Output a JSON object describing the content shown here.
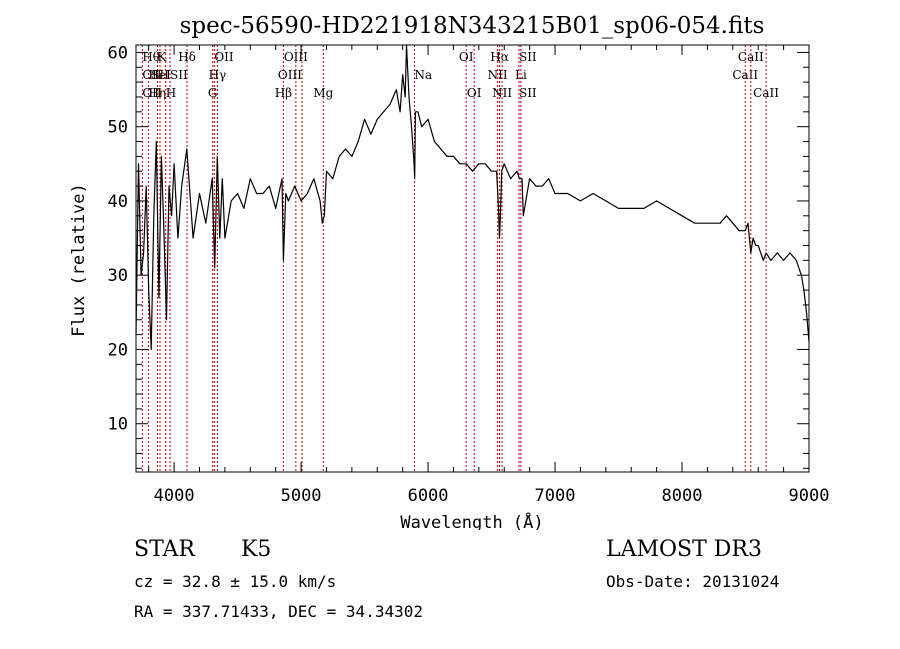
{
  "chart_data": {
    "type": "line",
    "title": "spec-56590-HD221918N343215B01_sp06-054.fits",
    "xlabel": "Wavelength (Å)",
    "ylabel": "Flux (relative)",
    "xlim": [
      3700,
      9000
    ],
    "ylim": [
      3.5,
      61
    ],
    "x_ticks": [
      4000,
      5000,
      6000,
      7000,
      8000,
      9000
    ],
    "y_ticks": [
      10,
      20,
      30,
      40,
      50,
      60
    ],
    "grid": false,
    "series": [
      {
        "name": "flux",
        "x": [
          3700,
          3720,
          3740,
          3760,
          3780,
          3800,
          3820,
          3840,
          3860,
          3880,
          3900,
          3920,
          3940,
          3960,
          3980,
          4000,
          4030,
          4060,
          4100,
          4150,
          4200,
          4250,
          4300,
          4320,
          4340,
          4360,
          4380,
          4400,
          4450,
          4500,
          4550,
          4600,
          4650,
          4700,
          4750,
          4800,
          4850,
          4861,
          4880,
          4900,
          4950,
          5000,
          5050,
          5100,
          5150,
          5167,
          5183,
          5200,
          5250,
          5300,
          5350,
          5400,
          5450,
          5500,
          5550,
          5600,
          5650,
          5700,
          5750,
          5780,
          5800,
          5820,
          5830,
          5850,
          5870,
          5890,
          5895,
          5900,
          5920,
          5950,
          6000,
          6050,
          6100,
          6150,
          6200,
          6250,
          6300,
          6350,
          6400,
          6450,
          6500,
          6540,
          6555,
          6563,
          6570,
          6580,
          6600,
          6650,
          6700,
          6720,
          6740,
          6750,
          6800,
          6850,
          6900,
          6950,
          7000,
          7100,
          7200,
          7300,
          7400,
          7500,
          7600,
          7700,
          7800,
          7900,
          8000,
          8100,
          8200,
          8300,
          8350,
          8400,
          8450,
          8498,
          8520,
          8542,
          8560,
          8580,
          8600,
          8640,
          8662,
          8700,
          8750,
          8800,
          8850,
          8900,
          8920,
          8940,
          8960,
          8980,
          9000
        ],
        "y": [
          22,
          45,
          30,
          33,
          42,
          28,
          20,
          38,
          48,
          27,
          46,
          36,
          24,
          42,
          38,
          45,
          35,
          42,
          47,
          35,
          41,
          37,
          43,
          31,
          46,
          35,
          43,
          35,
          40,
          41,
          39,
          43,
          41,
          41,
          42,
          39,
          43,
          32,
          41,
          40,
          42,
          40,
          41,
          43,
          40,
          37,
          38,
          44,
          43,
          46,
          47,
          46,
          48,
          51,
          49,
          51,
          52,
          53,
          55,
          52,
          57,
          54,
          63,
          54,
          50,
          45,
          43,
          52,
          52,
          50,
          51,
          48,
          47,
          46,
          46,
          45,
          45,
          44,
          45,
          45,
          44,
          44,
          39,
          35,
          38,
          44,
          45,
          43,
          44,
          43,
          43,
          38,
          43,
          42,
          42,
          43,
          41,
          41,
          40,
          41,
          40,
          39,
          39,
          39,
          40,
          39,
          38,
          37,
          37,
          37,
          38,
          37,
          36,
          36,
          37,
          33,
          35,
          34,
          34,
          32,
          33,
          32,
          33,
          32,
          33,
          32,
          31,
          30,
          28,
          25,
          21
        ]
      }
    ],
    "line_markers": [
      {
        "wave": 3750,
        "labels": [
          "Hθ",
          "OII",
          "OII"
        ],
        "rows": [
          0,
          1,
          2
        ],
        "anchor": "start"
      },
      {
        "wave": 3798,
        "labels": [
          "HeI",
          "Hη"
        ],
        "rows": [
          1,
          2
        ],
        "anchor": "start"
      },
      {
        "wave": 3869,
        "labels": [
          "K"
        ],
        "rows": [
          0
        ],
        "anchor": "start"
      },
      {
        "wave": 3889,
        "labels": [
          "SII"
        ],
        "rows": [
          1
        ],
        "anchor": "middle"
      },
      {
        "wave": 3934,
        "labels": [
          "H"
        ],
        "rows": [
          2
        ],
        "anchor": "start"
      },
      {
        "wave": 3968,
        "labels": [
          "SII"
        ],
        "rows": [
          1
        ],
        "anchor": "start"
      },
      {
        "wave": 4102,
        "labels": [
          "Hδ"
        ],
        "rows": [
          0
        ],
        "anchor": "middle"
      },
      {
        "wave": 4304,
        "labels": [
          "G"
        ],
        "rows": [
          2
        ],
        "anchor": "middle"
      },
      {
        "wave": 4317,
        "labels": [
          "OII"
        ],
        "rows": [
          0
        ],
        "anchor": "start"
      },
      {
        "wave": 4341,
        "labels": [
          "Hγ"
        ],
        "rows": [
          1
        ],
        "anchor": "middle"
      },
      {
        "wave": 4861,
        "labels": [
          "Hβ"
        ],
        "rows": [
          2
        ],
        "anchor": "middle"
      },
      {
        "wave": 4959,
        "labels": [
          "OIII"
        ],
        "rows": [
          0
        ],
        "anchor": "middle"
      },
      {
        "wave": 5007,
        "labels": [
          "OIII"
        ],
        "rows": [
          1
        ],
        "anchor": "end"
      },
      {
        "wave": 5175,
        "labels": [
          "Mg"
        ],
        "rows": [
          2
        ],
        "anchor": "middle"
      },
      {
        "wave": 5893,
        "labels": [
          "Na"
        ],
        "rows": [
          1
        ],
        "anchor": "start"
      },
      {
        "wave": 6300,
        "labels": [
          "OI"
        ],
        "rows": [
          0
        ],
        "anchor": "middle"
      },
      {
        "wave": 6363,
        "labels": [
          "OI"
        ],
        "rows": [
          2
        ],
        "anchor": "middle"
      },
      {
        "wave": 6548,
        "labels": [
          "NII"
        ],
        "rows": [
          1
        ],
        "anchor": "middle"
      },
      {
        "wave": 6563,
        "labels": [
          "Hα"
        ],
        "rows": [
          0
        ],
        "anchor": "middle"
      },
      {
        "wave": 6583,
        "labels": [
          "NII"
        ],
        "rows": [
          2
        ],
        "anchor": "middle"
      },
      {
        "wave": 6716,
        "labels": [
          "SII",
          "SII"
        ],
        "rows": [
          0,
          2
        ],
        "anchor": "start"
      },
      {
        "wave": 6731,
        "labels": [
          "Li"
        ],
        "rows": [
          1
        ],
        "anchor": "middle"
      },
      {
        "wave": 8498,
        "labels": [
          "CaII"
        ],
        "rows": [
          1
        ],
        "anchor": "middle"
      },
      {
        "wave": 8542,
        "labels": [
          "CaII"
        ],
        "rows": [
          0
        ],
        "anchor": "middle"
      },
      {
        "wave": 8662,
        "labels": [
          "CaII"
        ],
        "rows": [
          2
        ],
        "anchor": "middle"
      }
    ]
  },
  "info": {
    "object_class": "STAR",
    "subclass": "K5",
    "survey": "LAMOST DR3",
    "cz": "cz = 32.8 ± 15.0 km/s",
    "obs_date": "Obs-Date: 20131024",
    "coords": "RA = 337.71433, DEC =  34.34302"
  },
  "colors": {
    "axis": "#000000",
    "spectrum": "#000000",
    "marker_line": "#c00000"
  }
}
